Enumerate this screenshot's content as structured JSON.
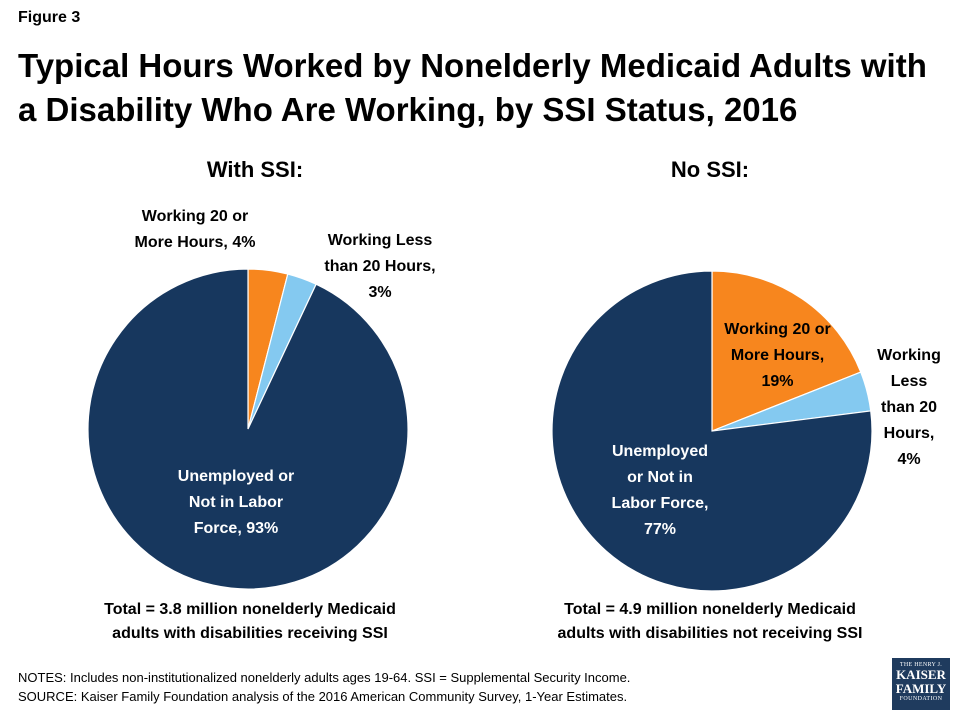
{
  "figure_label": "Figure 3",
  "title_lines": [
    "Typical Hours Worked by Nonelderly Medicaid Adults with",
    "a Disability Who Are Working, by SSI Status, 2016"
  ],
  "colors": {
    "working_20_plus": "#f7861e",
    "working_less_20": "#84c9f0",
    "unemployed": "#17375e",
    "logo": "#1f3b5e"
  },
  "chart_data": [
    {
      "type": "pie",
      "title": "With SSI:",
      "slices": [
        {
          "name": "Working 20 or More Hours",
          "value": 4,
          "color": "#f7861e"
        },
        {
          "name": "Working Less than 20 Hours",
          "value": 3,
          "color": "#84c9f0"
        },
        {
          "name": "Unemployed or Not in Labor Force",
          "value": 93,
          "color": "#17375e"
        }
      ],
      "labels": {
        "working_20_plus": [
          "Working 20 or",
          "More Hours, 4%"
        ],
        "working_less_20": [
          "Working Less",
          "than 20 Hours,",
          "3%"
        ],
        "unemployed": [
          "Unemployed or",
          "Not in Labor",
          "Force, 93%"
        ]
      },
      "total_note": [
        "Total = 3.8 million nonelderly Medicaid",
        "adults with disabilities receiving SSI"
      ]
    },
    {
      "type": "pie",
      "title": "No SSI:",
      "slices": [
        {
          "name": "Working 20 or More Hours",
          "value": 19,
          "color": "#f7861e"
        },
        {
          "name": "Working Less than 20 Hours",
          "value": 4,
          "color": "#84c9f0"
        },
        {
          "name": "Unemployed or Not in Labor Force",
          "value": 77,
          "color": "#17375e"
        }
      ],
      "labels": {
        "working_20_plus": [
          "Working 20 or",
          "More Hours,",
          "19%"
        ],
        "working_less_20": [
          "Working",
          "Less",
          "than 20",
          "Hours,",
          "4%"
        ],
        "unemployed": [
          "Unemployed",
          "or Not in",
          "Labor Force,",
          "77%"
        ]
      },
      "total_note": [
        "Total = 4.9 million nonelderly Medicaid",
        "adults with disabilities not receiving SSI"
      ]
    }
  ],
  "notes": [
    "NOTES: Includes non-institutionalized nonelderly adults ages 19-64. SSI = Supplemental Security Income.",
    "SOURCE: Kaiser Family Foundation analysis of the 2016 American Community Survey, 1-Year Estimates."
  ],
  "logo": {
    "line1": "THE HENRY J.",
    "line2": "KAISER",
    "line3": "FAMILY",
    "line4": "FOUNDATION"
  }
}
